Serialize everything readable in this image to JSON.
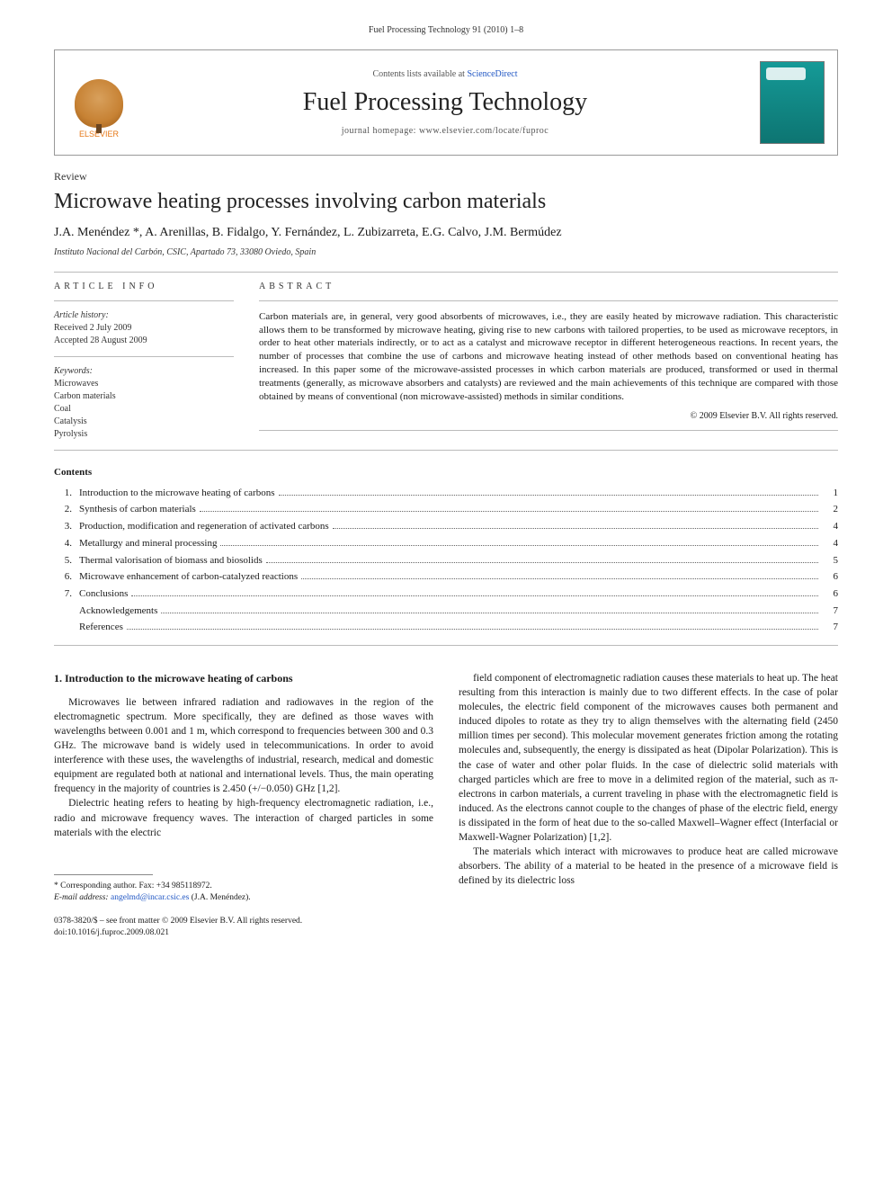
{
  "header": {
    "running_head": "Fuel Processing Technology 91 (2010) 1–8"
  },
  "banner": {
    "publisher": "ELSEVIER",
    "contents_prefix": "Contents lists available at ",
    "contents_link": "ScienceDirect",
    "journal_name": "Fuel Processing Technology",
    "homepage_prefix": "journal homepage: ",
    "homepage_url": "www.elsevier.com/locate/fuproc"
  },
  "article": {
    "type": "Review",
    "title": "Microwave heating processes involving carbon materials",
    "authors": "J.A. Menéndez *, A. Arenillas, B. Fidalgo, Y. Fernández, L. Zubizarreta, E.G. Calvo, J.M. Bermúdez",
    "affiliation": "Instituto Nacional del Carbón, CSIC, Apartado 73, 33080 Oviedo, Spain"
  },
  "article_info": {
    "heading": "ARTICLE INFO",
    "history_label": "Article history:",
    "received": "Received 2 July 2009",
    "accepted": "Accepted 28 August 2009",
    "keywords_label": "Keywords:",
    "keywords": [
      "Microwaves",
      "Carbon materials",
      "Coal",
      "Catalysis",
      "Pyrolysis"
    ]
  },
  "abstract": {
    "heading": "ABSTRACT",
    "text": "Carbon materials are, in general, very good absorbents of microwaves, i.e., they are easily heated by microwave radiation. This characteristic allows them to be transformed by microwave heating, giving rise to new carbons with tailored properties, to be used as microwave receptors, in order to heat other materials indirectly, or to act as a catalyst and microwave receptor in different heterogeneous reactions. In recent years, the number of processes that combine the use of carbons and microwave heating instead of other methods based on conventional heating has increased. In this paper some of the microwave-assisted processes in which carbon materials are produced, transformed or used in thermal treatments (generally, as microwave absorbers and catalysts) are reviewed and the main achievements of this technique are compared with those obtained by means of conventional (non microwave-assisted) methods in similar conditions.",
    "copyright": "© 2009 Elsevier B.V. All rights reserved."
  },
  "contents": {
    "heading": "Contents",
    "items": [
      {
        "num": "1.",
        "title": "Introduction to the microwave heating of carbons",
        "page": "1"
      },
      {
        "num": "2.",
        "title": "Synthesis of carbon materials",
        "page": "2"
      },
      {
        "num": "3.",
        "title": "Production, modification and regeneration of activated carbons",
        "page": "4"
      },
      {
        "num": "4.",
        "title": "Metallurgy and mineral processing",
        "page": "4"
      },
      {
        "num": "5.",
        "title": "Thermal valorisation of biomass and biosolids",
        "page": "5"
      },
      {
        "num": "6.",
        "title": "Microwave enhancement of carbon-catalyzed reactions",
        "page": "6"
      },
      {
        "num": "7.",
        "title": "Conclusions",
        "page": "6"
      },
      {
        "num": "",
        "title": "Acknowledgements",
        "page": "7"
      },
      {
        "num": "",
        "title": "References",
        "page": "7"
      }
    ]
  },
  "body": {
    "section_heading": "1. Introduction to the microwave heating of carbons",
    "left_paras": [
      "Microwaves lie between infrared radiation and radiowaves in the region of the electromagnetic spectrum. More specifically, they are defined as those waves with wavelengths between 0.001 and 1 m, which correspond to frequencies between 300 and 0.3 GHz. The microwave band is widely used in telecommunications. In order to avoid interference with these uses, the wavelengths of industrial, research, medical and domestic equipment are regulated both at national and international levels. Thus, the main operating frequency in the majority of countries is 2.450 (+/−0.050) GHz [1,2].",
      "Dielectric heating refers to heating by high-frequency electromagnetic radiation, i.e., radio and microwave frequency waves. The interaction of charged particles in some materials with the electric"
    ],
    "right_paras": [
      "field component of electromagnetic radiation causes these materials to heat up. The heat resulting from this interaction is mainly due to two different effects. In the case of polar molecules, the electric field component of the microwaves causes both permanent and induced dipoles to rotate as they try to align themselves with the alternating field (2450 million times per second). This molecular movement generates friction among the rotating molecules and, subsequently, the energy is dissipated as heat (Dipolar Polarization). This is the case of water and other polar fluids. In the case of dielectric solid materials with charged particles which are free to move in a delimited region of the material, such as π-electrons in carbon materials, a current traveling in phase with the electromagnetic field is induced. As the electrons cannot couple to the changes of phase of the electric field, energy is dissipated in the form of heat due to the so-called Maxwell–Wagner effect (Interfacial or Maxwell-Wagner Polarization) [1,2].",
      "The materials which interact with microwaves to produce heat are called microwave absorbers. The ability of a material to be heated in the presence of a microwave field is defined by its dielectric loss"
    ],
    "ref_citation": "[1,2]"
  },
  "footnote": {
    "corr_label": "* Corresponding author. Fax: +34 985118972.",
    "email_label": "E-mail address:",
    "email": "angelmd@incar.csic.es",
    "email_name": " (J.A. Menéndez)."
  },
  "footer": {
    "line1": "0378-3820/$ – see front matter © 2009 Elsevier B.V. All rights reserved.",
    "line2": "doi:10.1016/j.fuproc.2009.08.021"
  },
  "colors": {
    "link": "#2157c4",
    "publisher": "#e67817",
    "cover_bg": "#159a97",
    "rule": "#bbbbbb"
  }
}
